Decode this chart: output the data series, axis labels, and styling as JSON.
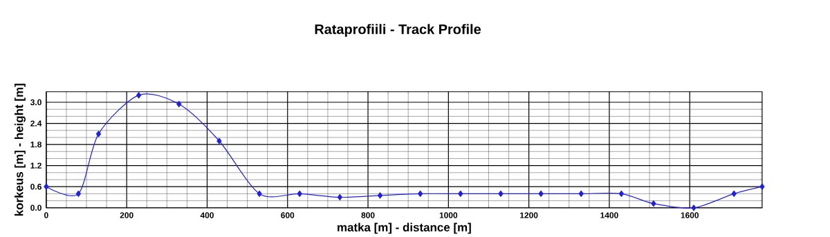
{
  "chart_data": {
    "type": "line",
    "title": "Rataprofiili - Track Profile",
    "xlabel": "matka [m] - distance [m]",
    "ylabel": "korkeus [m] - height [m]",
    "x": [
      0,
      80,
      130,
      230,
      330,
      430,
      530,
      630,
      730,
      830,
      930,
      1030,
      1130,
      1230,
      1330,
      1430,
      1510,
      1610,
      1710,
      1780
    ],
    "series": [
      {
        "color": "#2020e0",
        "values": [
          0.6,
          0.4,
          2.1,
          3.2,
          2.95,
          1.9,
          0.4,
          0.4,
          0.3,
          0.35,
          0.4,
          0.4,
          0.4,
          0.4,
          0.4,
          0.4,
          0.12,
          0.0,
          0.4,
          0.6
        ]
      }
    ],
    "xlim": [
      0,
      1780
    ],
    "ylim": [
      0,
      3.3
    ],
    "xticks": [
      0,
      200,
      400,
      600,
      800,
      1000,
      1200,
      1400,
      1600
    ],
    "yticks": [
      {
        "value": 0,
        "label": "0.0"
      },
      {
        "value": 0.6,
        "label": "0.6"
      },
      {
        "value": 1.2,
        "label": "1.2"
      },
      {
        "value": 1.8,
        "label": "1.8"
      },
      {
        "value": 2.4,
        "label": "2.4"
      },
      {
        "value": 3.0,
        "label": "3.0"
      }
    ],
    "grid": true,
    "marker": "diamond",
    "line_style": "solid"
  }
}
